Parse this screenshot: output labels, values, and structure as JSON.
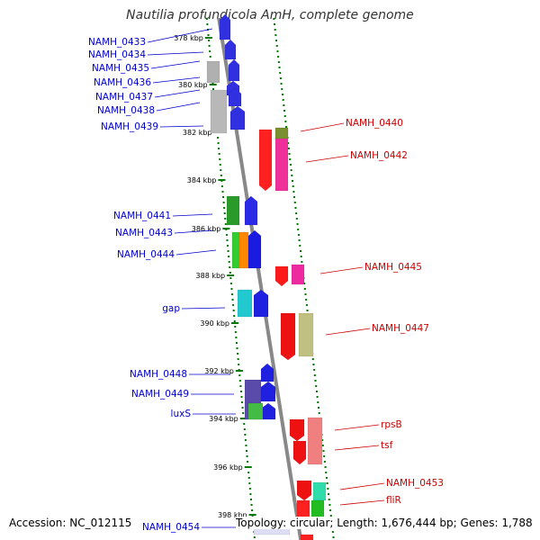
{
  "title": "Nautilia profundicola AmH, complete genome",
  "footer": {
    "accession_label": "Accession:",
    "accession": "NC_012115",
    "topology_label": "Topology:",
    "topology": "circular",
    "length_label": "Length:",
    "length": "1,676,444 bp",
    "genes_label": "Genes:",
    "genes": "1,788"
  },
  "colors": {
    "left_label": "#0000cc",
    "right_label": "#cc0000",
    "axis": "#888888",
    "track_dots": "#007700"
  },
  "ticks": [
    {
      "label": "378 kbp",
      "kbp": 378
    },
    {
      "label": "380 kbp",
      "kbp": 380
    },
    {
      "label": "382 kbp",
      "kbp": 382
    },
    {
      "label": "384 kbp",
      "kbp": 384
    },
    {
      "label": "386 kbp",
      "kbp": 386
    },
    {
      "label": "388 kbp",
      "kbp": 388
    },
    {
      "label": "390 kbp",
      "kbp": 390
    },
    {
      "label": "392 kbp",
      "kbp": 392
    },
    {
      "label": "394 kbp",
      "kbp": 394
    },
    {
      "label": "396 kbp",
      "kbp": 396
    },
    {
      "label": "398 kbp",
      "kbp": 398
    }
  ],
  "left_labels": [
    {
      "text": "NAMH_0433"
    },
    {
      "text": "NAMH_0434"
    },
    {
      "text": "NAMH_0435"
    },
    {
      "text": "NAMH_0436"
    },
    {
      "text": "NAMH_0437"
    },
    {
      "text": "NAMH_0438"
    },
    {
      "text": "NAMH_0439"
    },
    {
      "text": "NAMH_0441"
    },
    {
      "text": "NAMH_0443"
    },
    {
      "text": "NAMH_0444"
    },
    {
      "text": "gap"
    },
    {
      "text": "NAMH_0448"
    },
    {
      "text": "NAMH_0449"
    },
    {
      "text": "luxS"
    },
    {
      "text": "NAMH_0454"
    }
  ],
  "right_labels": [
    {
      "text": "NAMH_0440"
    },
    {
      "text": "NAMH_0442"
    },
    {
      "text": "NAMH_0445"
    },
    {
      "text": "NAMH_0447"
    },
    {
      "text": "rpsB"
    },
    {
      "text": "tsf"
    },
    {
      "text": "NAMH_0453"
    },
    {
      "text": "fliR"
    }
  ]
}
